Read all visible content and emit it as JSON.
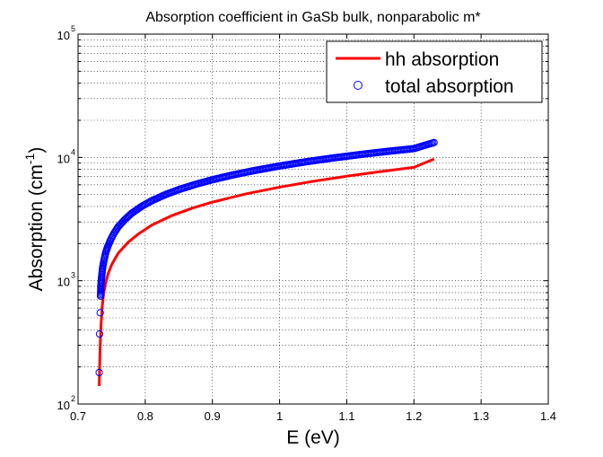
{
  "chart_data": {
    "type": "line",
    "title": "Absorption coefficient in GaSb bulk, nonparabolic m*",
    "xlabel": "E (eV)",
    "ylabel": "Absorption (cm",
    "ylabel_exponent": "-1",
    "ylabel_close": ")",
    "xlim": [
      0.7,
      1.4
    ],
    "ylim": [
      100,
      100000
    ],
    "xscale": "linear",
    "yscale": "log",
    "grid": true,
    "legend_position": "top-right",
    "x_ticks": [
      {
        "value": 0.7,
        "label": "0.7"
      },
      {
        "value": 0.8,
        "label": "0.8"
      },
      {
        "value": 0.9,
        "label": "0.9"
      },
      {
        "value": 1.0,
        "label": "1"
      },
      {
        "value": 1.1,
        "label": "1.1"
      },
      {
        "value": 1.2,
        "label": "1.2"
      },
      {
        "value": 1.3,
        "label": "1.3"
      },
      {
        "value": 1.4,
        "label": "1.4"
      }
    ],
    "y_ticks": [
      {
        "value": 100,
        "base": "10",
        "exp": "2"
      },
      {
        "value": 1000,
        "base": "10",
        "exp": "3"
      },
      {
        "value": 10000,
        "base": "10",
        "exp": "4"
      },
      {
        "value": 100000,
        "base": "10",
        "exp": "5"
      }
    ],
    "series": [
      {
        "name": "hh absorption",
        "style": "line",
        "color": "#ff0000",
        "x": [
          0.7315,
          0.7325,
          0.734,
          0.736,
          0.738,
          0.741,
          0.745,
          0.75,
          0.76,
          0.775,
          0.79,
          0.81,
          0.84,
          0.87,
          0.9,
          0.95,
          1.0,
          1.05,
          1.1,
          1.15,
          1.2,
          1.23
        ],
        "y": [
          140,
          250,
          420,
          620,
          780,
          960,
          1150,
          1350,
          1680,
          2060,
          2400,
          2830,
          3380,
          3880,
          4340,
          5060,
          5740,
          6400,
          7040,
          7680,
          8310,
          9700
        ]
      },
      {
        "name": "total absorption",
        "style": "markers",
        "color": "#0000ff",
        "x": [
          0.7315,
          0.732,
          0.733,
          0.7335,
          0.734,
          0.735,
          0.736,
          0.737,
          0.739,
          0.741,
          0.744,
          0.748,
          0.753,
          0.76,
          0.77,
          0.78,
          0.795,
          0.81,
          0.83,
          0.85,
          0.875,
          0.9,
          0.93,
          0.96,
          1.0,
          1.04,
          1.08,
          1.12,
          1.16,
          1.2,
          1.23
        ],
        "y": [
          180,
          370,
          550,
          750,
          920,
          1060,
          1200,
          1320,
          1500,
          1680,
          1880,
          2120,
          2400,
          2750,
          3150,
          3530,
          4020,
          4460,
          4990,
          5480,
          6050,
          6590,
          7200,
          7780,
          8520,
          9230,
          9900,
          10550,
          11180,
          11790,
          13200
        ]
      }
    ]
  }
}
